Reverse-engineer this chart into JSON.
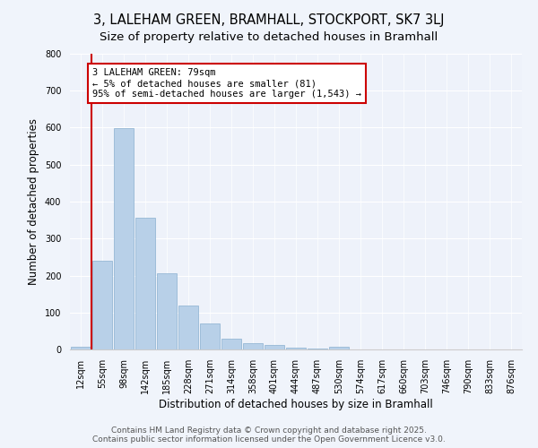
{
  "title": "3, LALEHAM GREEN, BRAMHALL, STOCKPORT, SK7 3LJ",
  "subtitle": "Size of property relative to detached houses in Bramhall",
  "xlabel": "Distribution of detached houses by size in Bramhall",
  "ylabel": "Number of detached properties",
  "categories": [
    "12sqm",
    "55sqm",
    "98sqm",
    "142sqm",
    "185sqm",
    "228sqm",
    "271sqm",
    "314sqm",
    "358sqm",
    "401sqm",
    "444sqm",
    "487sqm",
    "530sqm",
    "574sqm",
    "617sqm",
    "660sqm",
    "703sqm",
    "746sqm",
    "790sqm",
    "833sqm",
    "876sqm"
  ],
  "values": [
    8,
    240,
    598,
    356,
    207,
    118,
    70,
    28,
    17,
    13,
    5,
    2,
    8,
    0,
    0,
    0,
    0,
    0,
    0,
    0,
    0
  ],
  "bar_color": "#b8d0e8",
  "bar_edge_color": "#8ab0d0",
  "vline_x": 0.5,
  "vline_color": "#cc0000",
  "annotation_text": "3 LALEHAM GREEN: 79sqm\n← 5% of detached houses are smaller (81)\n95% of semi-detached houses are larger (1,543) →",
  "annotation_box_color": "#ffffff",
  "annotation_box_edge_color": "#cc0000",
  "ylim": [
    0,
    800
  ],
  "yticks": [
    0,
    100,
    200,
    300,
    400,
    500,
    600,
    700,
    800
  ],
  "bg_color": "#f0f4fb",
  "plot_bg_color": "#eef2fa",
  "footer": "Contains HM Land Registry data © Crown copyright and database right 2025.\nContains public sector information licensed under the Open Government Licence v3.0.",
  "title_fontsize": 10.5,
  "subtitle_fontsize": 9.5,
  "xlabel_fontsize": 8.5,
  "ylabel_fontsize": 8.5,
  "tick_fontsize": 7,
  "footer_fontsize": 6.5,
  "annotation_fontsize": 7.5
}
